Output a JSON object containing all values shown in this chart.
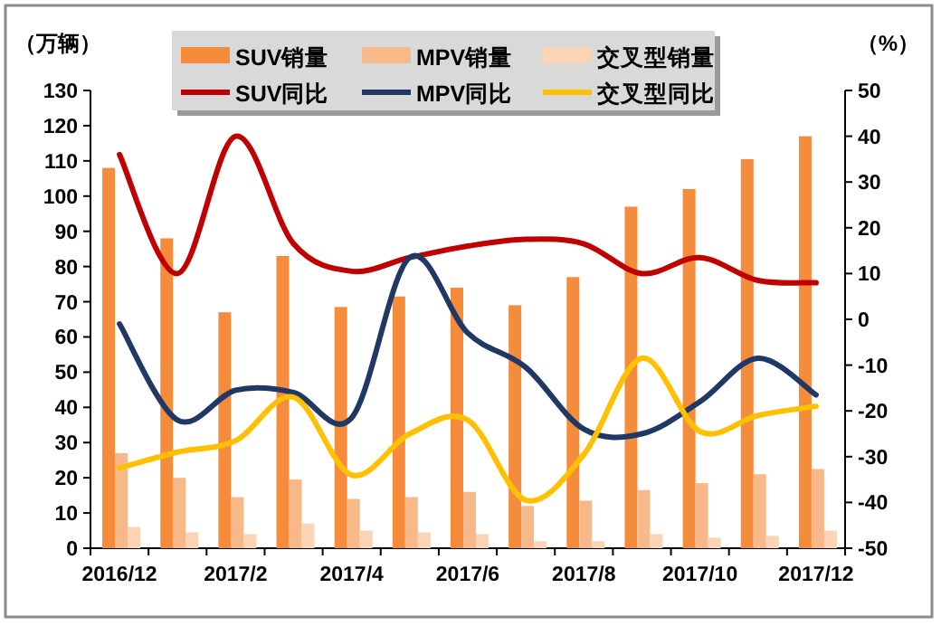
{
  "chart_data": {
    "type": "bar",
    "categories": [
      "2016/12",
      null,
      "2017/2",
      null,
      "2017/4",
      null,
      "2017/6",
      null,
      "2017/8",
      null,
      "2017/10",
      null,
      "2017/12"
    ],
    "ylabel": "（万辆）",
    "y2label": "（%）",
    "ylim": [
      0,
      130
    ],
    "yticks": [
      0,
      10,
      20,
      30,
      40,
      50,
      60,
      70,
      80,
      90,
      100,
      110,
      120,
      130
    ],
    "y2lim": [
      -50,
      50
    ],
    "y2ticks": [
      -50,
      -40,
      -30,
      -20,
      -10,
      0,
      10,
      20,
      30,
      40,
      50
    ],
    "legend": "top",
    "grid": false,
    "series": [
      {
        "name": "SUV销量",
        "color": "#f58c3c",
        "values": [
          108,
          88,
          67,
          83,
          68.5,
          71.5,
          74,
          69,
          77,
          97,
          102,
          110.5,
          117
        ]
      },
      {
        "name": "MPV销量",
        "color": "#f8b98a",
        "values": [
          27,
          20,
          14.5,
          19.5,
          14,
          14.5,
          16,
          12,
          13.5,
          16.5,
          18.5,
          21,
          22.5
        ]
      },
      {
        "name": "交叉型销量",
        "color": "#fbd4b5",
        "values": [
          6,
          4.5,
          4,
          7,
          5,
          4.5,
          4,
          2,
          2,
          4,
          3,
          3.5,
          5
        ]
      },
      {
        "name": "SUV同比",
        "type": "line",
        "axis": "y2",
        "color": "#c00000",
        "values": [
          36,
          10,
          40,
          16.5,
          10.5,
          13.5,
          16,
          17.5,
          16.5,
          10,
          13.5,
          8.5,
          8
        ]
      },
      {
        "name": "MPV同比",
        "type": "line",
        "axis": "y2",
        "color": "#1f3864",
        "values": [
          -1,
          -22,
          -15.5,
          -16,
          -21.5,
          13.5,
          -3,
          -10.5,
          -24,
          -25,
          -18,
          -8.5,
          -16.5
        ]
      },
      {
        "name": "交叉型同比",
        "type": "line",
        "axis": "y2",
        "color": "#ffc000",
        "values": [
          -32.5,
          -29,
          -26.5,
          -17,
          -34,
          -25,
          -22,
          -39.5,
          -29.5,
          -8.5,
          -24.5,
          -21,
          -19
        ]
      }
    ]
  }
}
